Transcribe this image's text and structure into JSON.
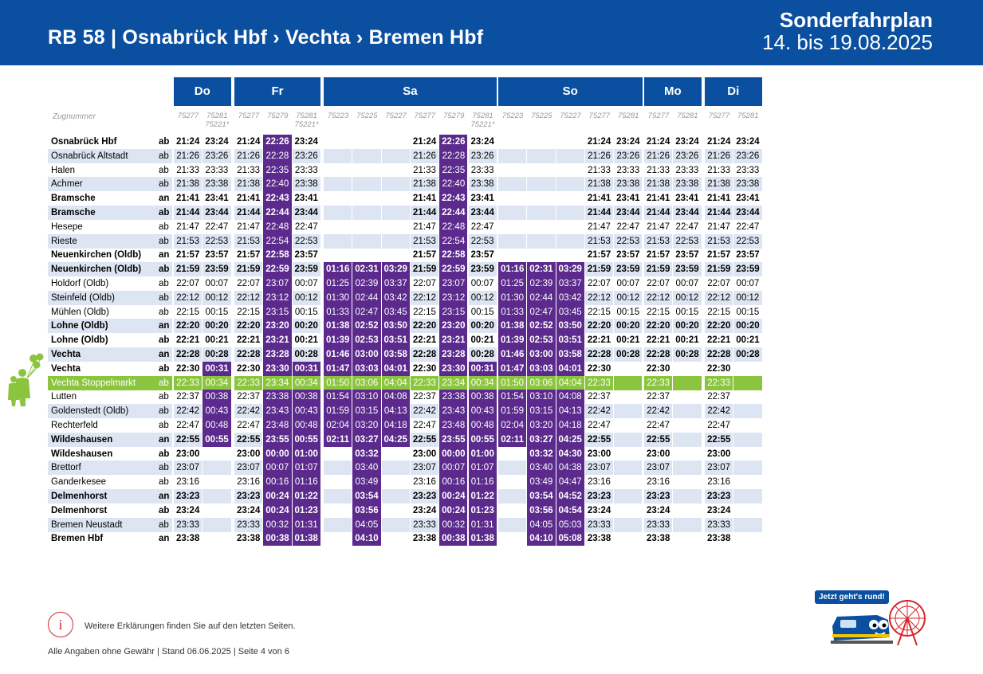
{
  "header": {
    "route_title": "RB 58  |  Osnabrück Hbf  ›  Vechta  ›  Bremen Hbf",
    "special_label": "Sonderfahrplan",
    "date_range": "14. bis 19.08.2025"
  },
  "table": {
    "train_number_label": "Zugnummer",
    "days": [
      {
        "label": "Do",
        "trains": [
          "75277",
          "75281\n75221*"
        ]
      },
      {
        "label": "Fr",
        "trains": [
          "75277",
          "75279",
          "75281\n75221*"
        ]
      },
      {
        "label": "Sa",
        "trains": [
          "75223",
          "75225",
          "75227",
          "75277",
          "75279",
          "75281\n75221*"
        ]
      },
      {
        "label": "So",
        "trains": [
          "75223",
          "75225",
          "75227",
          "75277",
          "75281"
        ]
      },
      {
        "label": "Mo",
        "trains": [
          "75277",
          "75281"
        ]
      },
      {
        "label": "Di",
        "trains": [
          "75277",
          "75281"
        ]
      }
    ],
    "rows": [
      {
        "station": "Osnabrück Hbf",
        "type": "ab",
        "bold": true,
        "times": [
          "21:24",
          "23:24",
          "21:24",
          "22:26",
          "23:24",
          "",
          "",
          "",
          "21:24",
          "22:26",
          "23:24",
          "",
          "",
          "",
          "21:24",
          "23:24",
          "21:24",
          "23:24",
          "21:24",
          "23:24"
        ]
      },
      {
        "station": "Osnabrück Altstadt",
        "type": "ab",
        "bold": false,
        "times": [
          "21:26",
          "23:26",
          "21:26",
          "22:28",
          "23:26",
          "",
          "",
          "",
          "21:26",
          "22:28",
          "23:26",
          "",
          "",
          "",
          "21:26",
          "23:26",
          "21:26",
          "23:26",
          "21:26",
          "23:26"
        ]
      },
      {
        "station": "Halen",
        "type": "ab",
        "bold": false,
        "times": [
          "21:33",
          "23:33",
          "21:33",
          "22:35",
          "23:33",
          "",
          "",
          "",
          "21:33",
          "22:35",
          "23:33",
          "",
          "",
          "",
          "21:33",
          "23:33",
          "21:33",
          "23:33",
          "21:33",
          "23:33"
        ]
      },
      {
        "station": "Achmer",
        "type": "ab",
        "bold": false,
        "times": [
          "21:38",
          "23:38",
          "21:38",
          "22:40",
          "23:38",
          "",
          "",
          "",
          "21:38",
          "22:40",
          "23:38",
          "",
          "",
          "",
          "21:38",
          "23:38",
          "21:38",
          "23:38",
          "21:38",
          "23:38"
        ]
      },
      {
        "station": "Bramsche",
        "type": "an",
        "bold": true,
        "times": [
          "21:41",
          "23:41",
          "21:41",
          "22:43",
          "23:41",
          "",
          "",
          "",
          "21:41",
          "22:43",
          "23:41",
          "",
          "",
          "",
          "21:41",
          "23:41",
          "21:41",
          "23:41",
          "21:41",
          "23:41"
        ]
      },
      {
        "station": "Bramsche",
        "type": "ab",
        "bold": true,
        "times": [
          "21:44",
          "23:44",
          "21:44",
          "22:44",
          "23:44",
          "",
          "",
          "",
          "21:44",
          "22:44",
          "23:44",
          "",
          "",
          "",
          "21:44",
          "23:44",
          "21:44",
          "23:44",
          "21:44",
          "23:44"
        ]
      },
      {
        "station": "Hesepe",
        "type": "ab",
        "bold": false,
        "times": [
          "21:47",
          "22:47",
          "21:47",
          "22:48",
          "22:47",
          "",
          "",
          "",
          "21:47",
          "22:48",
          "22:47",
          "",
          "",
          "",
          "21:47",
          "22:47",
          "21:47",
          "22:47",
          "21:47",
          "22:47"
        ]
      },
      {
        "station": "Rieste",
        "type": "ab",
        "bold": false,
        "times": [
          "21:53",
          "22:53",
          "21:53",
          "22:54",
          "22:53",
          "",
          "",
          "",
          "21:53",
          "22:54",
          "22:53",
          "",
          "",
          "",
          "21:53",
          "22:53",
          "21:53",
          "22:53",
          "21:53",
          "22:53"
        ]
      },
      {
        "station": "Neuenkirchen (Oldb)",
        "type": "an",
        "bold": true,
        "times": [
          "21:57",
          "23:57",
          "21:57",
          "22:58",
          "23:57",
          "",
          "",
          "",
          "21:57",
          "22:58",
          "23:57",
          "",
          "",
          "",
          "21:57",
          "23:57",
          "21:57",
          "23:57",
          "21:57",
          "23:57"
        ]
      },
      {
        "station": "Neuenkirchen (Oldb)",
        "type": "ab",
        "bold": true,
        "times": [
          "21:59",
          "23:59",
          "21:59",
          "22:59",
          "23:59",
          "01:16",
          "02:31",
          "03:29",
          "21:59",
          "22:59",
          "23:59",
          "01:16",
          "02:31",
          "03:29",
          "21:59",
          "23:59",
          "21:59",
          "23:59",
          "21:59",
          "23:59"
        ]
      },
      {
        "station": "Holdorf (Oldb)",
        "type": "ab",
        "bold": false,
        "times": [
          "22:07",
          "00:07",
          "22:07",
          "23:07",
          "00:07",
          "01:25",
          "02:39",
          "03:37",
          "22:07",
          "23:07",
          "00:07",
          "01:25",
          "02:39",
          "03:37",
          "22:07",
          "00:07",
          "22:07",
          "00:07",
          "22:07",
          "00:07"
        ]
      },
      {
        "station": "Steinfeld (Oldb)",
        "type": "ab",
        "bold": false,
        "times": [
          "22:12",
          "00:12",
          "22:12",
          "23:12",
          "00:12",
          "01:30",
          "02:44",
          "03:42",
          "22:12",
          "23:12",
          "00:12",
          "01:30",
          "02:44",
          "03:42",
          "22:12",
          "00:12",
          "22:12",
          "00:12",
          "22:12",
          "00:12"
        ]
      },
      {
        "station": "Mühlen (Oldb)",
        "type": "ab",
        "bold": false,
        "times": [
          "22:15",
          "00:15",
          "22:15",
          "23:15",
          "00:15",
          "01:33",
          "02:47",
          "03:45",
          "22:15",
          "23:15",
          "00:15",
          "01:33",
          "02:47",
          "03:45",
          "22:15",
          "00:15",
          "22:15",
          "00:15",
          "22:15",
          "00:15"
        ]
      },
      {
        "station": "Lohne (Oldb)",
        "type": "an",
        "bold": true,
        "times": [
          "22:20",
          "00:20",
          "22:20",
          "23:20",
          "00:20",
          "01:38",
          "02:52",
          "03:50",
          "22:20",
          "23:20",
          "00:20",
          "01:38",
          "02:52",
          "03:50",
          "22:20",
          "00:20",
          "22:20",
          "00:20",
          "22:20",
          "00:20"
        ]
      },
      {
        "station": "Lohne (Oldb)",
        "type": "ab",
        "bold": true,
        "times": [
          "22:21",
          "00:21",
          "22:21",
          "23:21",
          "00:21",
          "01:39",
          "02:53",
          "03:51",
          "22:21",
          "23:21",
          "00:21",
          "01:39",
          "02:53",
          "03:51",
          "22:21",
          "00:21",
          "22:21",
          "00:21",
          "22:21",
          "00:21"
        ]
      },
      {
        "station": "Vechta",
        "type": "an",
        "bold": true,
        "times": [
          "22:28",
          "00:28",
          "22:28",
          "23:28",
          "00:28",
          "01:46",
          "03:00",
          "03:58",
          "22:28",
          "23:28",
          "00:28",
          "01:46",
          "03:00",
          "03:58",
          "22:28",
          "00:28",
          "22:28",
          "00:28",
          "22:28",
          "00:28"
        ]
      },
      {
        "station": "Vechta",
        "type": "ab",
        "bold": true,
        "times": [
          "22:30",
          "00:31",
          "22:30",
          "23:30",
          "00:31",
          "01:47",
          "03:03",
          "04:01",
          "22:30",
          "23:30",
          "00:31",
          "01:47",
          "03:03",
          "04:01",
          "22:30",
          "",
          "22:30",
          "",
          "22:30",
          ""
        ]
      },
      {
        "station": "Vechta Stoppelmarkt",
        "type": "ab",
        "bold": false,
        "highlight": true,
        "times": [
          "22:33",
          "00:34",
          "22:33",
          "23:34",
          "00:34",
          "01:50",
          "03:06",
          "04:04",
          "22:33",
          "23:34",
          "00:34",
          "01:50",
          "03:06",
          "04:04",
          "22:33",
          "",
          "22:33",
          "",
          "22:33",
          ""
        ]
      },
      {
        "station": "Lutten",
        "type": "ab",
        "bold": false,
        "times": [
          "22:37",
          "00:38",
          "22:37",
          "23:38",
          "00:38",
          "01:54",
          "03:10",
          "04:08",
          "22:37",
          "23:38",
          "00:38",
          "01:54",
          "03:10",
          "04:08",
          "22:37",
          "",
          "22:37",
          "",
          "22:37",
          ""
        ]
      },
      {
        "station": "Goldenstedt (Oldb)",
        "type": "ab",
        "bold": false,
        "times": [
          "22:42",
          "00:43",
          "22:42",
          "23:43",
          "00:43",
          "01:59",
          "03:15",
          "04:13",
          "22:42",
          "23:43",
          "00:43",
          "01:59",
          "03:15",
          "04:13",
          "22:42",
          "",
          "22:42",
          "",
          "22:42",
          ""
        ]
      },
      {
        "station": "Rechterfeld",
        "type": "ab",
        "bold": false,
        "times": [
          "22:47",
          "00:48",
          "22:47",
          "23:48",
          "00:48",
          "02:04",
          "03:20",
          "04:18",
          "22:47",
          "23:48",
          "00:48",
          "02:04",
          "03:20",
          "04:18",
          "22:47",
          "",
          "22:47",
          "",
          "22:47",
          ""
        ]
      },
      {
        "station": "Wildeshausen",
        "type": "an",
        "bold": true,
        "times": [
          "22:55",
          "00:55",
          "22:55",
          "23:55",
          "00:55",
          "02:11",
          "03:27",
          "04:25",
          "22:55",
          "23:55",
          "00:55",
          "02:11",
          "03:27",
          "04:25",
          "22:55",
          "",
          "22:55",
          "",
          "22:55",
          ""
        ]
      },
      {
        "station": "Wildeshausen",
        "type": "ab",
        "bold": true,
        "times": [
          "23:00",
          "",
          "23:00",
          "00:00",
          "01:00",
          "",
          "03:32",
          "",
          "23:00",
          "00:00",
          "01:00",
          "",
          "03:32",
          "04:30",
          "23:00",
          "",
          "23:00",
          "",
          "23:00",
          ""
        ]
      },
      {
        "station": "Brettorf",
        "type": "ab",
        "bold": false,
        "times": [
          "23:07",
          "",
          "23:07",
          "00:07",
          "01:07",
          "",
          "03:40",
          "",
          "23:07",
          "00:07",
          "01:07",
          "",
          "03:40",
          "04:38",
          "23:07",
          "",
          "23:07",
          "",
          "23:07",
          ""
        ]
      },
      {
        "station": "Ganderkesee",
        "type": "ab",
        "bold": false,
        "times": [
          "23:16",
          "",
          "23:16",
          "00:16",
          "01:16",
          "",
          "03:49",
          "",
          "23:16",
          "00:16",
          "01:16",
          "",
          "03:49",
          "04:47",
          "23:16",
          "",
          "23:16",
          "",
          "23:16",
          ""
        ]
      },
      {
        "station": "Delmenhorst",
        "type": "an",
        "bold": true,
        "times": [
          "23:23",
          "",
          "23:23",
          "00:24",
          "01:22",
          "",
          "03:54",
          "",
          "23:23",
          "00:24",
          "01:22",
          "",
          "03:54",
          "04:52",
          "23:23",
          "",
          "23:23",
          "",
          "23:23",
          ""
        ]
      },
      {
        "station": "Delmenhorst",
        "type": "ab",
        "bold": true,
        "times": [
          "23:24",
          "",
          "23:24",
          "00:24",
          "01:23",
          "",
          "03:56",
          "",
          "23:24",
          "00:24",
          "01:23",
          "",
          "03:56",
          "04:54",
          "23:24",
          "",
          "23:24",
          "",
          "23:24",
          ""
        ]
      },
      {
        "station": "Bremen Neustadt",
        "type": "ab",
        "bold": false,
        "times": [
          "23:33",
          "",
          "23:33",
          "00:32",
          "01:31",
          "",
          "04:05",
          "",
          "23:33",
          "00:32",
          "01:31",
          "",
          "04:05",
          "05:03",
          "23:33",
          "",
          "23:33",
          "",
          "23:33",
          ""
        ]
      },
      {
        "station": "Bremen Hbf",
        "type": "an",
        "bold": true,
        "times": [
          "23:38",
          "",
          "23:38",
          "00:38",
          "01:38",
          "",
          "04:10",
          "",
          "23:38",
          "00:38",
          "01:38",
          "",
          "04:10",
          "05:08",
          "23:38",
          "",
          "23:38",
          "",
          "23:38",
          ""
        ]
      }
    ]
  },
  "footer": {
    "info_icon": "i",
    "info_text": "Weitere Erklärungen finden Sie auf den letzten Seiten.",
    "legal": "Alle Angaben ohne Gewähr | Stand 06.06.2025 | Seite 4 von 6",
    "badge_text": "Jetzt geht's rund!"
  },
  "colors": {
    "brand_blue": "#0a4fa0",
    "special_purple": "#5b2a8c",
    "highlight_green": "#8bc53f",
    "row_alt": "#dde5f2"
  },
  "icons": [
    "info-icon",
    "balloon-figures-illustration",
    "train-mascot-illustration",
    "ferris-wheel-illustration"
  ]
}
